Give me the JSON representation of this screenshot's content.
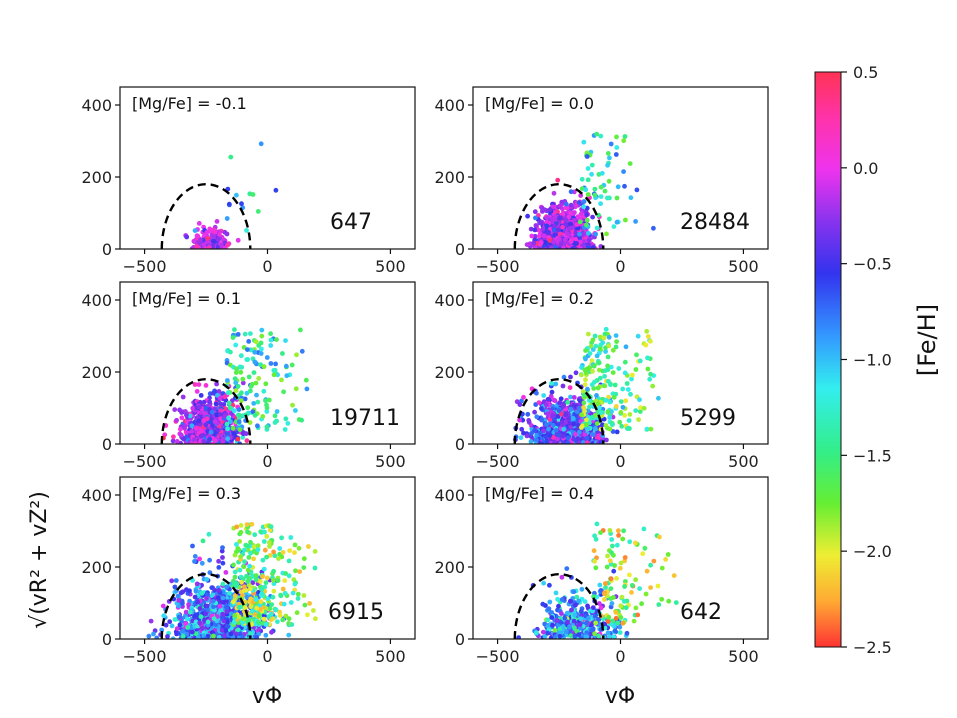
{
  "chart_data": {
    "type": "scatter",
    "x_axis_label": "vΦ",
    "y_axis_label": "√(vR² + vZ²)",
    "xlim": [
      -600,
      600
    ],
    "ylim": [
      0,
      450
    ],
    "x_ticks": [
      -500,
      0,
      500
    ],
    "y_ticks": [
      0,
      200,
      400
    ],
    "x_tick_labels": [
      "−500",
      "0",
      "500"
    ],
    "y_tick_labels": [
      "0",
      "200",
      "400"
    ],
    "dashed_boundary": {
      "center_vphi": -250,
      "half_width": 180,
      "height": 180
    },
    "colorbar": {
      "label": "[Fe/H]",
      "min": -2.5,
      "max": 0.5,
      "ticks": [
        0.5,
        0.0,
        -0.5,
        -1.0,
        -1.5,
        -2.0,
        -2.5
      ],
      "tick_labels": [
        "0.5",
        "0.0",
        "−0.5",
        "−1.0",
        "−1.5",
        "−2.0",
        "−2.5"
      ],
      "colormap": "hsv-like (red → magenta → blue → cyan → green → yellow → red)"
    },
    "panels": [
      {
        "label": "[Mg/Fe] = -0.1",
        "count": "647",
        "center_vphi": -230,
        "spread_vphi": 40,
        "spread_v": 30,
        "feh_mean": -0.1,
        "feh_sd": 0.2,
        "n": 160,
        "outliers": 14
      },
      {
        "label": "[Mg/Fe] = 0.0",
        "count": "28484",
        "center_vphi": -230,
        "spread_vphi": 50,
        "spread_v": 45,
        "feh_mean": -0.2,
        "feh_sd": 0.25,
        "n": 1100,
        "outliers": 70
      },
      {
        "label": "[Mg/Fe] = 0.1",
        "count": "19711",
        "center_vphi": -230,
        "spread_vphi": 55,
        "spread_v": 50,
        "feh_mean": -0.3,
        "feh_sd": 0.3,
        "n": 900,
        "outliers": 160
      },
      {
        "label": "[Mg/Fe] = 0.2",
        "count": "5299",
        "center_vphi": -220,
        "spread_vphi": 70,
        "spread_v": 55,
        "feh_mean": -0.5,
        "feh_sd": 0.35,
        "n": 800,
        "outliers": 220
      },
      {
        "label": "[Mg/Fe] = 0.3",
        "count": "6915",
        "center_vphi": -200,
        "spread_vphi": 90,
        "spread_v": 70,
        "feh_mean": -0.7,
        "feh_sd": 0.35,
        "n": 1000,
        "outliers": 300
      },
      {
        "label": "[Mg/Fe] = 0.4",
        "count": "642",
        "center_vphi": -170,
        "spread_vphi": 75,
        "spread_v": 55,
        "feh_mean": -0.8,
        "feh_sd": 0.35,
        "n": 380,
        "outliers": 110
      }
    ]
  }
}
